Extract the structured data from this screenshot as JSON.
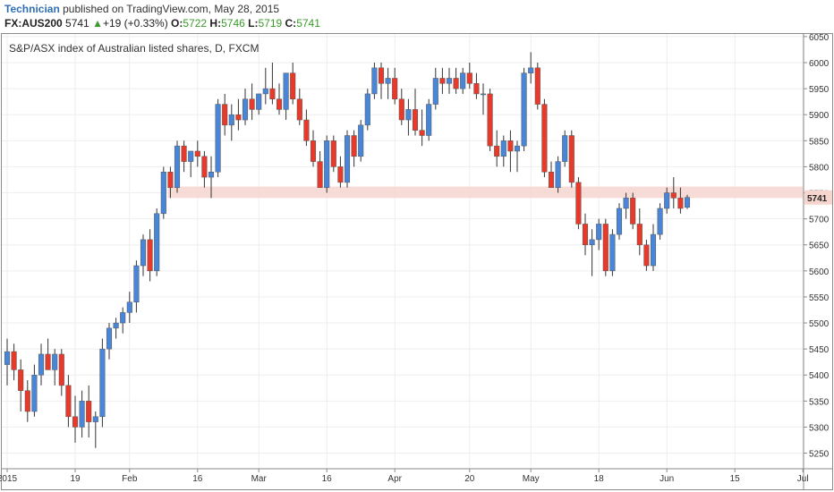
{
  "header": {
    "author": "Technician",
    "published": " published on TradingView.com, May 28, 2015",
    "symbol": "FX:AUS200",
    "last": "5741",
    "change_arrow": "▲",
    "change": "+19 (+0.33%)",
    "open_label": "O:",
    "open": "5722",
    "high_label": "H:",
    "high": "5746",
    "low_label": "L:",
    "low": "5719",
    "close_label": "C:",
    "close": "5741"
  },
  "colors": {
    "up": "#4a86d8",
    "down": "#e8392b",
    "band": "#f6d5cf",
    "grid": "#eeeeee",
    "price_tag": "#f6d5cf"
  },
  "chart_data": {
    "type": "candlestick",
    "title": "S&P/ASX index of Australian listed shares, D, FXCM",
    "y_ticks": [
      5250,
      5300,
      5350,
      5400,
      5450,
      5500,
      5550,
      5600,
      5650,
      5700,
      5750,
      5800,
      5850,
      5900,
      5950,
      6000,
      6050
    ],
    "ylim": [
      5220,
      6055
    ],
    "x_tick_labels": [
      "2015",
      "19",
      "Feb",
      "16",
      "Mar",
      "16",
      "Apr",
      "20",
      "May",
      "18",
      "Jun",
      "15",
      "Jul"
    ],
    "x_tick_candle_positions": [
      0,
      10,
      18,
      28,
      37,
      47,
      57,
      68,
      77,
      87,
      97,
      107,
      117
    ],
    "current_price_label": "5741",
    "support_band": [
      5740,
      5762
    ],
    "grid": true,
    "candles": [
      [
        5420,
        5470,
        5380,
        5445
      ],
      [
        5445,
        5460,
        5390,
        5410
      ],
      [
        5410,
        5430,
        5330,
        5370
      ],
      [
        5370,
        5390,
        5310,
        5330
      ],
      [
        5330,
        5420,
        5320,
        5400
      ],
      [
        5400,
        5460,
        5380,
        5440
      ],
      [
        5440,
        5470,
        5410,
        5410
      ],
      [
        5410,
        5450,
        5380,
        5440
      ],
      [
        5440,
        5450,
        5360,
        5380
      ],
      [
        5380,
        5400,
        5300,
        5320
      ],
      [
        5320,
        5360,
        5270,
        5300
      ],
      [
        5300,
        5370,
        5280,
        5350
      ],
      [
        5350,
        5380,
        5280,
        5310
      ],
      [
        5310,
        5330,
        5260,
        5320
      ],
      [
        5320,
        5470,
        5300,
        5450
      ],
      [
        5450,
        5500,
        5430,
        5490
      ],
      [
        5490,
        5510,
        5470,
        5500
      ],
      [
        5500,
        5530,
        5480,
        5520
      ],
      [
        5520,
        5560,
        5500,
        5540
      ],
      [
        5540,
        5620,
        5520,
        5610
      ],
      [
        5610,
        5670,
        5590,
        5660
      ],
      [
        5660,
        5680,
        5580,
        5600
      ],
      [
        5600,
        5720,
        5590,
        5710
      ],
      [
        5710,
        5800,
        5700,
        5790
      ],
      [
        5790,
        5800,
        5740,
        5760
      ],
      [
        5760,
        5850,
        5750,
        5840
      ],
      [
        5840,
        5850,
        5790,
        5810
      ],
      [
        5810,
        5830,
        5780,
        5830
      ],
      [
        5830,
        5850,
        5800,
        5820
      ],
      [
        5820,
        5830,
        5760,
        5780
      ],
      [
        5780,
        5820,
        5740,
        5790
      ],
      [
        5790,
        5930,
        5780,
        5920
      ],
      [
        5920,
        5940,
        5860,
        5880
      ],
      [
        5880,
        5920,
        5850,
        5900
      ],
      [
        5900,
        5930,
        5870,
        5890
      ],
      [
        5890,
        5950,
        5880,
        5930
      ],
      [
        5930,
        5960,
        5890,
        5910
      ],
      [
        5910,
        5940,
        5900,
        5940
      ],
      [
        5940,
        5990,
        5920,
        5950
      ],
      [
        5950,
        6000,
        5920,
        5930
      ],
      [
        5930,
        5960,
        5900,
        5910
      ],
      [
        5910,
        5980,
        5890,
        5980
      ],
      [
        5980,
        6000,
        5920,
        5930
      ],
      [
        5930,
        5950,
        5880,
        5890
      ],
      [
        5890,
        5910,
        5840,
        5850
      ],
      [
        5850,
        5870,
        5800,
        5810
      ],
      [
        5810,
        5830,
        5760,
        5760
      ],
      [
        5760,
        5860,
        5750,
        5850
      ],
      [
        5850,
        5860,
        5790,
        5800
      ],
      [
        5800,
        5820,
        5760,
        5770
      ],
      [
        5770,
        5870,
        5760,
        5860
      ],
      [
        5860,
        5870,
        5800,
        5820
      ],
      [
        5820,
        5890,
        5810,
        5880
      ],
      [
        5880,
        5950,
        5870,
        5940
      ],
      [
        5940,
        6000,
        5930,
        5990
      ],
      [
        5990,
        6000,
        5930,
        5960
      ],
      [
        5960,
        5990,
        5930,
        5970
      ],
      [
        5970,
        5990,
        5920,
        5930
      ],
      [
        5930,
        5950,
        5880,
        5890
      ],
      [
        5890,
        5930,
        5860,
        5910
      ],
      [
        5910,
        5950,
        5860,
        5870
      ],
      [
        5870,
        5910,
        5840,
        5860
      ],
      [
        5860,
        5930,
        5850,
        5920
      ],
      [
        5920,
        5990,
        5910,
        5970
      ],
      [
        5970,
        5990,
        5940,
        5960
      ],
      [
        5960,
        5990,
        5940,
        5970
      ],
      [
        5970,
        5990,
        5940,
        5950
      ],
      [
        5950,
        5990,
        5940,
        5980
      ],
      [
        5980,
        6000,
        5950,
        5960
      ],
      [
        5960,
        5980,
        5930,
        5940
      ],
      [
        5940,
        5960,
        5900,
        5940
      ],
      [
        5940,
        5950,
        5830,
        5840
      ],
      [
        5840,
        5870,
        5800,
        5820
      ],
      [
        5820,
        5860,
        5800,
        5850
      ],
      [
        5850,
        5870,
        5790,
        5830
      ],
      [
        5830,
        5850,
        5790,
        5840
      ],
      [
        5840,
        5990,
        5830,
        5980
      ],
      [
        5980,
        6020,
        5960,
        5990
      ],
      [
        5990,
        6000,
        5910,
        5920
      ],
      [
        5920,
        5930,
        5780,
        5790
      ],
      [
        5790,
        5810,
        5760,
        5760
      ],
      [
        5760,
        5820,
        5750,
        5810
      ],
      [
        5810,
        5870,
        5800,
        5860
      ],
      [
        5860,
        5870,
        5760,
        5770
      ],
      [
        5770,
        5780,
        5680,
        5690
      ],
      [
        5690,
        5710,
        5630,
        5650
      ],
      [
        5650,
        5680,
        5590,
        5660
      ],
      [
        5660,
        5700,
        5640,
        5690
      ],
      [
        5690,
        5700,
        5590,
        5600
      ],
      [
        5600,
        5680,
        5590,
        5670
      ],
      [
        5670,
        5730,
        5660,
        5720
      ],
      [
        5720,
        5750,
        5700,
        5740
      ],
      [
        5740,
        5750,
        5680,
        5690
      ],
      [
        5690,
        5720,
        5630,
        5650
      ],
      [
        5650,
        5660,
        5600,
        5610
      ],
      [
        5610,
        5690,
        5600,
        5670
      ],
      [
        5670,
        5730,
        5660,
        5720
      ],
      [
        5720,
        5760,
        5710,
        5750
      ],
      [
        5750,
        5780,
        5720,
        5740
      ],
      [
        5740,
        5760,
        5710,
        5720
      ],
      [
        5722,
        5746,
        5719,
        5741
      ]
    ]
  }
}
